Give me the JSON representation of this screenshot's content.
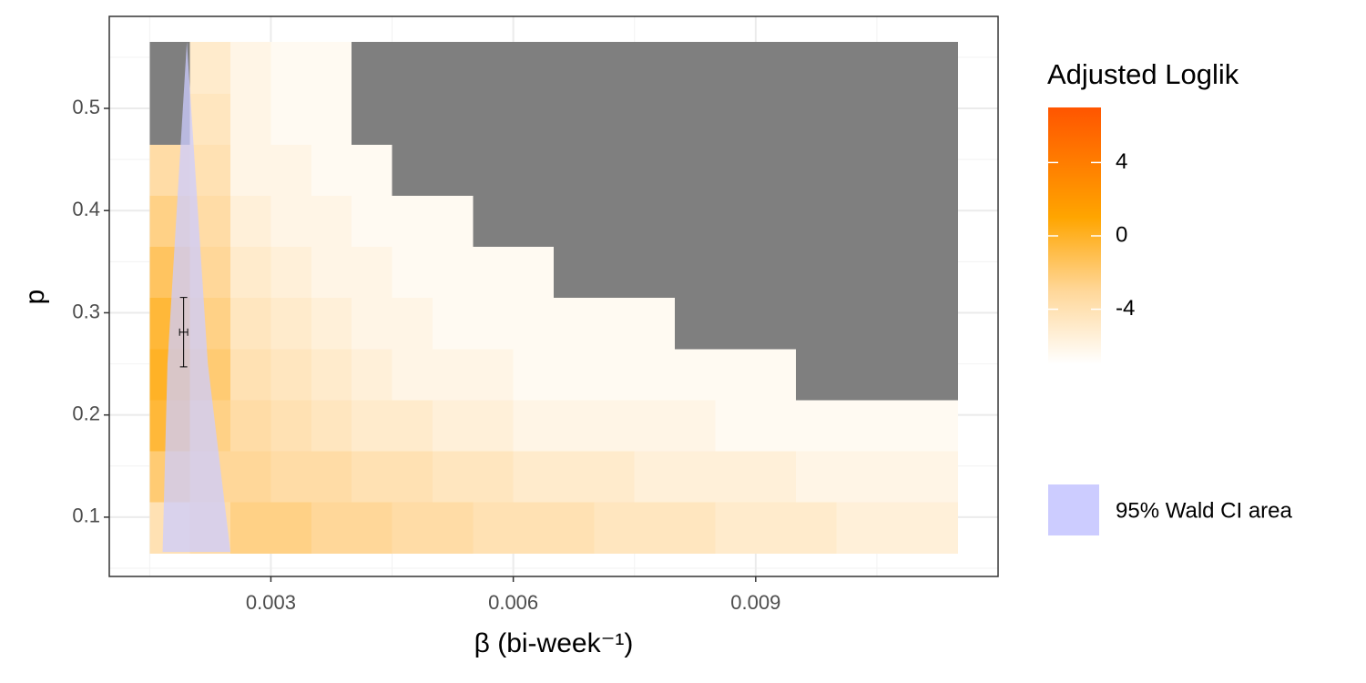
{
  "chart_data": {
    "type": "heatmap",
    "xlabel": "β (bi-week⁻¹)",
    "ylabel": "p",
    "xlim": [
      0.001,
      0.012
    ],
    "ylim": [
      0.042,
      0.59
    ],
    "xticks": [
      0.003,
      0.006,
      0.009
    ],
    "yticks": [
      0.1,
      0.2,
      0.3,
      0.4,
      0.5
    ],
    "grid": true,
    "x_bins": [
      0.0015,
      0.002,
      0.0025,
      0.003,
      0.0035,
      0.004,
      0.0045,
      0.005,
      0.0055,
      0.006,
      0.0065,
      0.007,
      0.0075,
      0.008,
      0.0085,
      0.009,
      0.0095,
      0.01,
      0.0105,
      0.011,
      0.0115
    ],
    "y_bins": [
      0.065,
      0.115,
      0.165,
      0.215,
      0.265,
      0.315,
      0.365,
      0.415,
      0.465,
      0.515,
      0.565
    ],
    "z": [
      [
        -4,
        -3.5,
        -2.5,
        -2.5,
        -3,
        -3,
        -3.5,
        -3.5,
        -4,
        -4,
        -4,
        -4.5,
        -4.5,
        -4.5,
        -5,
        -5,
        -5,
        -5.5,
        -5.5,
        -5.5
      ],
      [
        -2,
        -3,
        -3,
        -3.5,
        -3.5,
        -4,
        -4,
        -4.5,
        -4.5,
        -5,
        -5,
        -5,
        -5.5,
        -5.5,
        -5.5,
        -5.5,
        -6,
        -6,
        -6,
        -6
      ],
      [
        -0.5,
        -2.5,
        -3.5,
        -4,
        -4.5,
        -5,
        -5,
        -5.5,
        -5.5,
        -6,
        -6,
        -6,
        -6,
        -6,
        -6.5,
        -6.5,
        -6.5,
        -6.5,
        -6.5,
        -6.5
      ],
      [
        0,
        -2,
        -4,
        -4.5,
        -5,
        -5.5,
        -6,
        -6,
        -6,
        -6.5,
        -6.5,
        -6.5,
        -6.5,
        -6.5,
        -6.5,
        -6.5,
        null,
        null,
        null,
        null
      ],
      [
        -0.5,
        -2.5,
        -4.5,
        -5,
        -5.5,
        -6,
        -6,
        -6.5,
        -6.5,
        -6.5,
        -6.5,
        -6.5,
        -6.5,
        null,
        null,
        null,
        null,
        null,
        null,
        null
      ],
      [
        -1.5,
        -3,
        -5,
        -5.5,
        -6,
        -6,
        -6.5,
        -6.5,
        -6.5,
        -6.5,
        null,
        null,
        null,
        null,
        null,
        null,
        null,
        null,
        null,
        null
      ],
      [
        -2.5,
        -3.5,
        -5.5,
        -6,
        -6,
        -6.5,
        -6.5,
        -6.5,
        null,
        null,
        null,
        null,
        null,
        null,
        null,
        null,
        null,
        null,
        null,
        null
      ],
      [
        -3.5,
        -4,
        -6,
        -6,
        -6.5,
        -6.5,
        null,
        null,
        null,
        null,
        null,
        null,
        null,
        null,
        null,
        null,
        null,
        null,
        null,
        null
      ],
      [
        null,
        -4.5,
        -6,
        -6.5,
        -6.5,
        null,
        null,
        null,
        null,
        null,
        null,
        null,
        null,
        null,
        null,
        null,
        null,
        null,
        null,
        null
      ],
      [
        null,
        -5,
        -6,
        -6.5,
        -6.5,
        null,
        null,
        null,
        null,
        null,
        null,
        null,
        null,
        null,
        null,
        null,
        null,
        null,
        null,
        null
      ]
    ],
    "na_color": "#7f7f7f",
    "legend_title": "Adjusted Loglik",
    "clim": [
      -7,
      7
    ],
    "cticks": [
      4,
      0,
      -4
    ],
    "colorscale": [
      {
        "value": -7,
        "color": "#ffffff"
      },
      {
        "value": -3,
        "color": "#ffd799"
      },
      {
        "value": 1,
        "color": "#ffa500"
      },
      {
        "value": 7,
        "color": "#ff5500"
      }
    ],
    "ci_area": {
      "name": "95% Wald CI area",
      "color": "#ccccff",
      "x": [
        0.00196,
        0.00222,
        0.0025,
        0.00166,
        0.00172
      ],
      "y": [
        0.565,
        0.25,
        0.066,
        0.066,
        0.25
      ]
    },
    "estimate": {
      "x": 0.00192,
      "y": 0.281,
      "x_err": 5e-05,
      "y_err": 0.034
    }
  }
}
